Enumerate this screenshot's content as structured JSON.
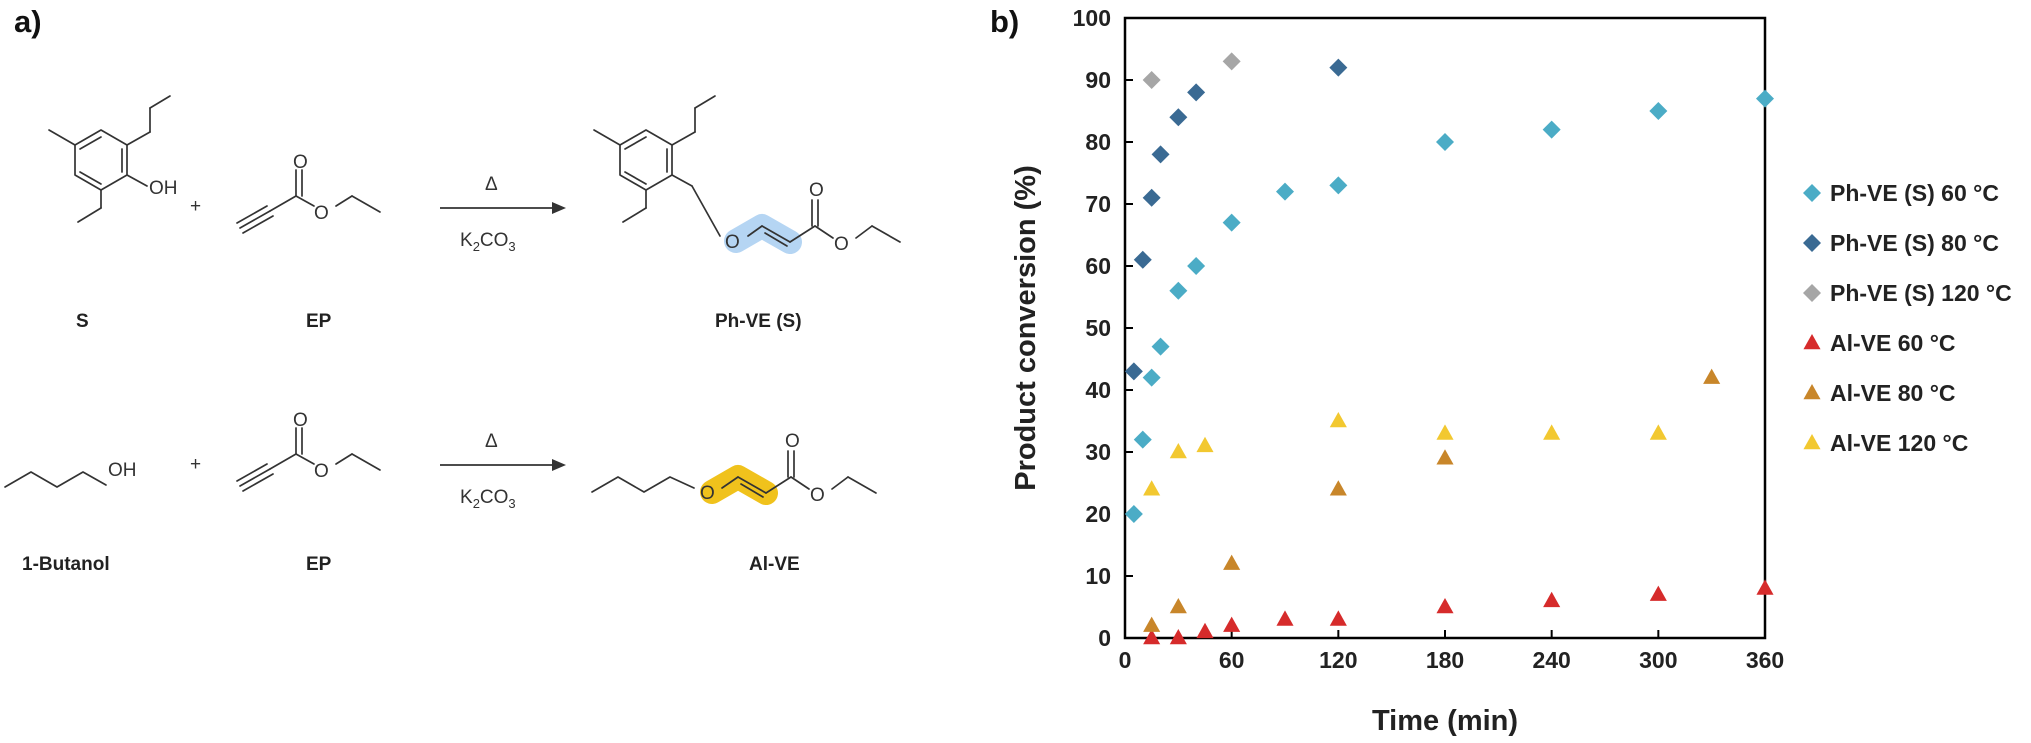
{
  "panel_a": {
    "label": "a)",
    "reaction1": {
      "reactant1": "S",
      "plus": "+",
      "reactant2": "EP",
      "condition_top": "Δ",
      "condition_bottom_main": "K",
      "condition_bottom_sub1": "2",
      "condition_bottom_mid": "CO",
      "condition_bottom_sub2": "3",
      "product": "Ph-VE (S)",
      "atom_oh": "OH",
      "atom_o": "O",
      "highlight_color": "#b5d5f3"
    },
    "reaction2": {
      "reactant1": "1-Butanol",
      "plus": "+",
      "reactant2": "EP",
      "condition_top": "Δ",
      "condition_bottom_main": "K",
      "condition_bottom_sub1": "2",
      "condition_bottom_mid": "CO",
      "condition_bottom_sub2": "3",
      "product": "Al-VE",
      "atom_oh": "OH",
      "atom_o": "O",
      "highlight_color": "#f0c21c"
    }
  },
  "panel_b": {
    "label": "b)"
  },
  "chart_data": {
    "type": "scatter",
    "xlabel": "Time (min)",
    "ylabel": "Product conversion (%)",
    "xlim": [
      0,
      360
    ],
    "ylim": [
      0,
      100
    ],
    "xticks": [
      0,
      60,
      120,
      180,
      240,
      300,
      360
    ],
    "yticks": [
      0,
      10,
      20,
      30,
      40,
      50,
      60,
      70,
      80,
      90,
      100
    ],
    "grid": false,
    "legend_position": "right",
    "series": [
      {
        "name": "Ph-VE (S) 60 °C",
        "marker": "diamond",
        "color": "#4bacc6",
        "points": [
          [
            5,
            20
          ],
          [
            10,
            32
          ],
          [
            15,
            42
          ],
          [
            20,
            47
          ],
          [
            30,
            56
          ],
          [
            40,
            60
          ],
          [
            60,
            67
          ],
          [
            90,
            72
          ],
          [
            120,
            73
          ],
          [
            180,
            80
          ],
          [
            240,
            82
          ],
          [
            300,
            85
          ],
          [
            360,
            87
          ]
        ]
      },
      {
        "name": "Ph-VE (S) 80 °C",
        "marker": "diamond",
        "color": "#3a6a93",
        "points": [
          [
            5,
            43
          ],
          [
            10,
            61
          ],
          [
            15,
            71
          ],
          [
            20,
            78
          ],
          [
            30,
            84
          ],
          [
            40,
            88
          ],
          [
            120,
            92
          ]
        ]
      },
      {
        "name": "Ph-VE (S) 120 °C",
        "marker": "diamond",
        "color": "#a6a6a6",
        "points": [
          [
            15,
            90
          ],
          [
            60,
            93
          ]
        ]
      },
      {
        "name": "Al-VE 60 °C",
        "marker": "triangle",
        "color": "#d62b2b",
        "points": [
          [
            15,
            0
          ],
          [
            30,
            0
          ],
          [
            45,
            1
          ],
          [
            60,
            2
          ],
          [
            90,
            3
          ],
          [
            120,
            3
          ],
          [
            180,
            5
          ],
          [
            240,
            6
          ],
          [
            300,
            7
          ],
          [
            360,
            8
          ]
        ]
      },
      {
        "name": "Al-VE 80 °C",
        "marker": "triangle",
        "color": "#c8862a",
        "points": [
          [
            15,
            2
          ],
          [
            30,
            5
          ],
          [
            60,
            12
          ],
          [
            120,
            24
          ],
          [
            180,
            29
          ],
          [
            330,
            42
          ]
        ]
      },
      {
        "name": "Al-VE 120 °C",
        "marker": "triangle",
        "color": "#f2c830",
        "points": [
          [
            15,
            24
          ],
          [
            30,
            30
          ],
          [
            45,
            31
          ],
          [
            120,
            35
          ],
          [
            180,
            33
          ],
          [
            240,
            33
          ],
          [
            300,
            33
          ]
        ]
      }
    ]
  }
}
